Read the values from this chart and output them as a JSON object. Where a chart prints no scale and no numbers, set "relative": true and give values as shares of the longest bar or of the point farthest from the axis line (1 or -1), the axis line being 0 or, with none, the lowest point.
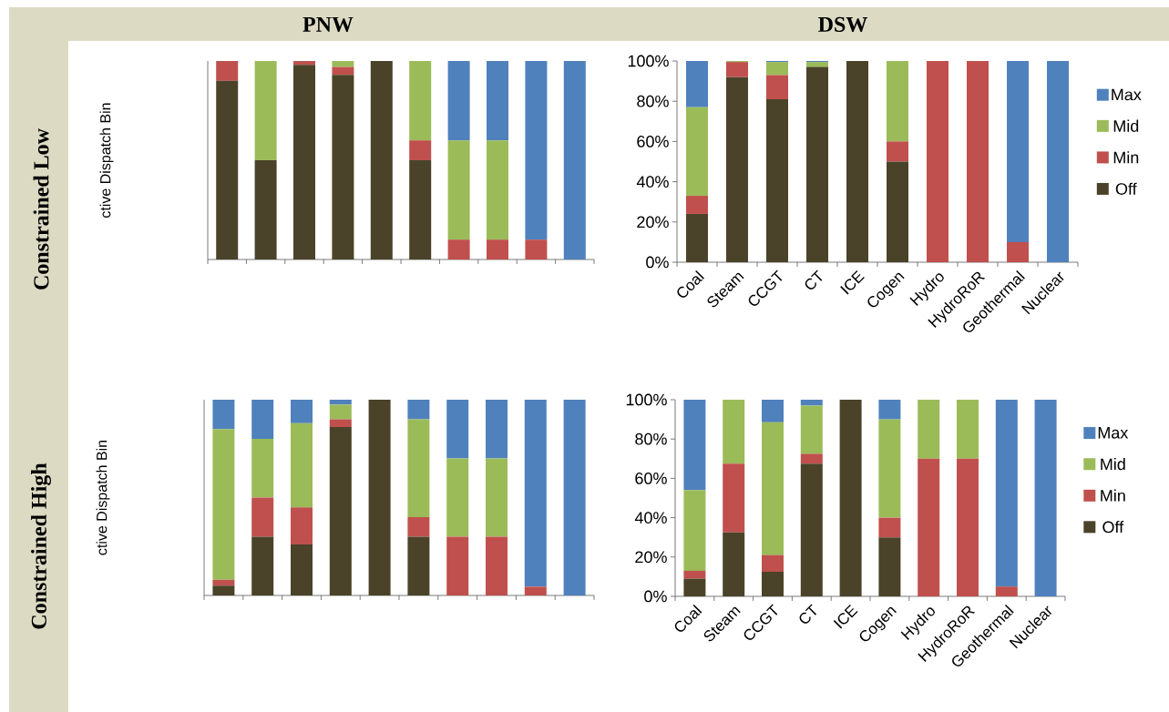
{
  "chart_data": [
    {
      "type": "bar",
      "stacked": true,
      "relative": true,
      "title": "PNW",
      "ylabel": "ctive Dispatch Bin",
      "annotations": [
        "Constrained Low"
      ],
      "categories": [
        null,
        null,
        null,
        null,
        null,
        null,
        null,
        null,
        null,
        null
      ],
      "series": [
        {
          "color": "#4a4329",
          "values": [
            0.9,
            0.5,
            0.98,
            0.93,
            1,
            0.5,
            0,
            0,
            0,
            0
          ]
        },
        {
          "color": "#c0504d",
          "values": [
            0.1,
            0,
            0.02,
            0.04,
            0,
            0.1,
            0.1,
            0.1,
            0.1,
            0
          ]
        },
        {
          "color": "#9bbb59",
          "values": [
            0,
            0.5,
            0,
            0.03,
            0,
            0.4,
            0.5,
            0.5,
            0,
            0
          ]
        },
        {
          "color": "#4f81bd",
          "values": [
            0,
            0,
            0,
            0,
            0,
            0,
            0.4,
            0.4,
            0.9,
            1
          ]
        }
      ]
    },
    {
      "type": "bar",
      "stacked": true,
      "title": "DSW",
      "legend": "right",
      "categories": [
        "Coal",
        "Steam",
        "CCGT",
        "CT",
        "ICE",
        "Cogen",
        "Hydro",
        "HydroRoR",
        "Geothermal",
        "Nuclear"
      ],
      "ylim": [
        0,
        100
      ],
      "yticks": [
        {
          "value": 0,
          "label": "0%"
        },
        {
          "value": 20,
          "label": "20%"
        },
        {
          "value": 40,
          "label": "40%"
        },
        {
          "value": 60,
          "label": "60%"
        },
        {
          "value": 80,
          "label": "80%"
        },
        {
          "value": 100,
          "label": "100%"
        }
      ],
      "series": [
        {
          "name": "Off",
          "color": "#4a4329",
          "values": [
            24,
            92,
            81,
            97,
            100,
            50,
            0,
            0,
            0,
            0
          ]
        },
        {
          "name": "Min",
          "color": "#c0504d",
          "values": [
            9,
            7.5,
            12,
            0,
            0,
            10,
            100,
            100,
            10,
            0
          ]
        },
        {
          "name": "Mid",
          "color": "#9bbb59",
          "values": [
            44,
            0.5,
            6.5,
            2.5,
            0,
            40,
            0,
            0,
            0,
            0
          ]
        },
        {
          "name": "Max",
          "color": "#4f81bd",
          "values": [
            23,
            0,
            0.5,
            0.5,
            0,
            0,
            0,
            0,
            90,
            100
          ]
        }
      ]
    },
    {
      "type": "bar",
      "stacked": true,
      "relative": true,
      "ylabel": "ctive Dispatch Bin",
      "annotations": [
        "Constrained High"
      ],
      "categories": [
        null,
        null,
        null,
        null,
        null,
        null,
        null,
        null,
        null,
        null
      ],
      "series": [
        {
          "color": "#4a4329",
          "values": [
            0.05,
            0.3,
            0.26,
            0.86,
            1,
            0.3,
            0,
            0,
            0,
            0
          ]
        },
        {
          "color": "#c0504d",
          "values": [
            0.03,
            0.2,
            0.19,
            0.04,
            0,
            0.1,
            0.3,
            0.3,
            0.045,
            0
          ]
        },
        {
          "color": "#9bbb59",
          "values": [
            0.77,
            0.3,
            0.43,
            0.075,
            0,
            0.5,
            0.4,
            0.4,
            0,
            0
          ]
        },
        {
          "color": "#4f81bd",
          "values": [
            0.15,
            0.2,
            0.12,
            0.025,
            0,
            0.1,
            0.3,
            0.3,
            0.955,
            1
          ]
        }
      ]
    },
    {
      "type": "bar",
      "stacked": true,
      "legend": "right",
      "categories": [
        "Coal",
        "Steam",
        "CCGT",
        "CT",
        "ICE",
        "Cogen",
        "Hydro",
        "HydroRoR",
        "Geothermal",
        "Nuclear"
      ],
      "ylim": [
        0,
        100
      ],
      "yticks": [
        {
          "value": 0,
          "label": "0%"
        },
        {
          "value": 20,
          "label": "20%"
        },
        {
          "value": 40,
          "label": "40%"
        },
        {
          "value": 60,
          "label": "60%"
        },
        {
          "value": 80,
          "label": "80%"
        },
        {
          "value": 100,
          "label": "100%"
        }
      ],
      "series": [
        {
          "name": "Off",
          "color": "#4a4329",
          "values": [
            9,
            32.5,
            12.5,
            67.5,
            100,
            30,
            0,
            0,
            0,
            0
          ]
        },
        {
          "name": "Min",
          "color": "#c0504d",
          "values": [
            4,
            35,
            8.5,
            5,
            0,
            10,
            70,
            70,
            5,
            0
          ]
        },
        {
          "name": "Mid",
          "color": "#9bbb59",
          "values": [
            41,
            32.5,
            67.5,
            24.5,
            0,
            50,
            30,
            30,
            0,
            0
          ]
        },
        {
          "name": "Max",
          "color": "#4f81bd",
          "values": [
            46,
            0,
            11.5,
            3,
            0,
            10,
            0,
            0,
            95,
            100
          ]
        }
      ]
    }
  ]
}
